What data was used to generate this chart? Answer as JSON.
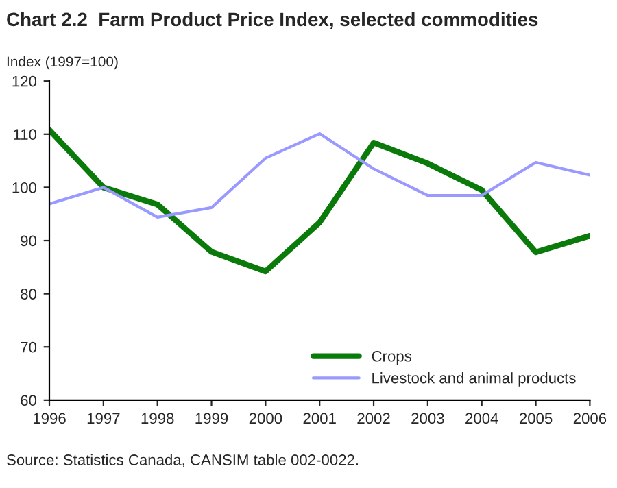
{
  "chart_data": {
    "type": "line",
    "title": "Chart 2.2  Farm Product Price Index, selected commodities",
    "ylabel": "Index (1997=100)",
    "x": [
      1996,
      1997,
      1998,
      1999,
      2000,
      2001,
      2002,
      2003,
      2004,
      2005,
      2006
    ],
    "series": [
      {
        "name": "Crops",
        "color": "#0a7a0a",
        "values": [
          110.8,
          100,
          96.8,
          87.9,
          84.2,
          93.4,
          108.4,
          104.5,
          99.5,
          87.8,
          90.9
        ]
      },
      {
        "name": "Livestock and animal products",
        "color": "#9999ff",
        "values": [
          96.9,
          100,
          94.4,
          96.2,
          105.5,
          110.1,
          103.5,
          98.5,
          98.5,
          104.7,
          102.3
        ]
      }
    ],
    "xlim": [
      1996,
      2006
    ],
    "xticks": [
      1996,
      1997,
      1998,
      1999,
      2000,
      2001,
      2002,
      2003,
      2004,
      2005,
      2006
    ],
    "ylim": [
      60,
      120
    ],
    "yticks": [
      60,
      70,
      80,
      90,
      100,
      110,
      120
    ],
    "grid": false,
    "legend": "lower right",
    "annotations": [
      "Source: Statistics Canada, CANSIM table 002-0022."
    ]
  }
}
